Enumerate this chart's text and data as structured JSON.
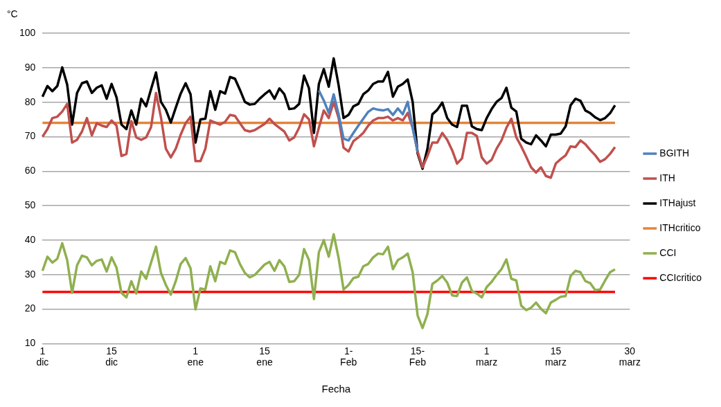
{
  "chart_data": {
    "type": "line",
    "xlabel": "Fecha",
    "ylabel": "°C",
    "ylim": [
      10,
      100
    ],
    "yticks": [
      10,
      20,
      30,
      40,
      50,
      60,
      70,
      80,
      90,
      100
    ],
    "categories": [
      "1 dic",
      null,
      null,
      null,
      null,
      null,
      null,
      null,
      null,
      null,
      null,
      null,
      null,
      null,
      "15 dic",
      null,
      null,
      null,
      null,
      null,
      null,
      null,
      null,
      null,
      null,
      null,
      null,
      null,
      null,
      null,
      null,
      "1 ene",
      null,
      null,
      null,
      null,
      null,
      null,
      null,
      null,
      null,
      null,
      null,
      null,
      null,
      "15 ene",
      null,
      null,
      null,
      null,
      null,
      null,
      null,
      null,
      null,
      null,
      null,
      null,
      null,
      null,
      null,
      null,
      "1- Feb",
      null,
      null,
      null,
      null,
      null,
      null,
      null,
      null,
      null,
      null,
      null,
      null,
      null,
      "15- Feb",
      null,
      null,
      null,
      null,
      null,
      null,
      null,
      null,
      null,
      null,
      null,
      null,
      null,
      "1 marz",
      null,
      null,
      null,
      null,
      null,
      null,
      null,
      null,
      null,
      null,
      null,
      null,
      null,
      "15 marz",
      null,
      null,
      null,
      null,
      null,
      null,
      null,
      null,
      null,
      null,
      null,
      null,
      null,
      null,
      "30 marz"
    ],
    "grid": "y",
    "legend": "right",
    "marker": "none",
    "line_style": "solid",
    "series": [
      {
        "name": "BGITH",
        "color": "#4f81bd",
        "values": [
          null,
          null,
          null,
          null,
          null,
          null,
          null,
          null,
          null,
          null,
          null,
          null,
          null,
          null,
          null,
          null,
          null,
          null,
          null,
          null,
          null,
          null,
          null,
          null,
          null,
          null,
          null,
          null,
          null,
          null,
          null,
          null,
          null,
          null,
          null,
          null,
          null,
          null,
          null,
          null,
          null,
          null,
          null,
          null,
          null,
          null,
          null,
          null,
          null,
          null,
          null,
          null,
          null,
          null,
          null,
          null,
          83.4,
          80.5,
          76.9,
          82.3,
          76.5,
          69.4,
          68.9,
          71.1,
          73.2,
          75.2,
          77.2,
          78.2,
          77.8,
          77.6,
          78,
          76.3,
          78.2,
          76.5,
          80.1,
          72.6,
          65.7,
          null,
          null,
          null,
          null,
          null,
          null,
          null,
          null,
          null,
          null,
          null,
          null,
          null,
          null,
          null,
          null,
          null,
          null,
          null,
          null,
          null,
          null,
          null,
          null,
          null,
          null,
          null,
          null,
          null,
          null,
          null,
          null,
          null,
          null,
          null,
          null,
          null,
          null,
          null,
          null,
          null,
          null,
          null
        ]
      },
      {
        "name": "ITH",
        "color": "#c0504d",
        "values": [
          70,
          72.2,
          75.4,
          75.8,
          77.3,
          79.5,
          68.3,
          69.1,
          71.5,
          75.4,
          70.4,
          73.9,
          73.2,
          72.8,
          74.7,
          73.2,
          64.4,
          65,
          74.5,
          69.8,
          69.1,
          69.8,
          72.8,
          82.7,
          75.6,
          66.5,
          64,
          66.5,
          70.6,
          73.9,
          75.8,
          62.9,
          62.9,
          66.5,
          74.7,
          74.1,
          73.5,
          74.3,
          76.3,
          76,
          73.9,
          71.9,
          71.5,
          71.9,
          72.8,
          73.7,
          75.2,
          73.7,
          72.6,
          71.5,
          68.9,
          69.8,
          72.6,
          76.5,
          75,
          67.2,
          72.6,
          77.6,
          75.4,
          80.1,
          75.4,
          66.8,
          65.7,
          68.7,
          69.8,
          71.1,
          73.2,
          74.7,
          75.4,
          75.4,
          75.8,
          74.7,
          75.4,
          74.7,
          76.9,
          72.6,
          65.7,
          61.1,
          64.4,
          68.3,
          68.3,
          71.1,
          69.1,
          66.1,
          62.2,
          63.7,
          71.1,
          71.1,
          70.2,
          64,
          62.2,
          63.3,
          66.5,
          68.9,
          72.6,
          75.2,
          69.8,
          67.2,
          64.2,
          61.1,
          59.6,
          61.1,
          58.6,
          58.1,
          62.2,
          63.5,
          64.6,
          67.2,
          67,
          68.9,
          67.8,
          66.1,
          64.6,
          62.7,
          63.5,
          65,
          67,
          null,
          null,
          null
        ]
      },
      {
        "name": "ITHajust",
        "color": "#000000",
        "values": [
          81.6,
          84.7,
          83.2,
          84.7,
          90.1,
          85.1,
          73.5,
          82.7,
          85.5,
          86,
          82.7,
          84.2,
          84.9,
          81,
          85.3,
          81.4,
          73.5,
          72.2,
          77.6,
          73.5,
          81,
          78.8,
          83.8,
          88.6,
          80.1,
          77.8,
          74.1,
          78.4,
          82.5,
          85.5,
          82.3,
          68.3,
          75,
          75.2,
          83.2,
          77.8,
          83.2,
          82.5,
          87.3,
          86.8,
          83.6,
          80.1,
          79.3,
          79.5,
          81,
          82.3,
          83.4,
          81,
          84,
          82.3,
          78,
          78.2,
          79.5,
          87.7,
          84,
          71.1,
          85.3,
          89.6,
          84.5,
          92.7,
          84.9,
          75.4,
          76.3,
          78.8,
          79.5,
          82.3,
          83.4,
          85.3,
          86,
          86,
          88.8,
          81.6,
          84.5,
          85.3,
          86.6,
          80.1,
          65.2,
          60.7,
          66.5,
          76.5,
          77.8,
          79.9,
          75.4,
          73.5,
          72.8,
          79,
          79,
          73,
          72.2,
          71.9,
          75.4,
          78,
          80.1,
          81.2,
          84.2,
          78.4,
          77.3,
          69.4,
          68.3,
          67.8,
          70.4,
          68.9,
          67.2,
          70.6,
          70.6,
          70.9,
          73,
          79.1,
          81,
          80.4,
          77.6,
          76.8,
          75.6,
          74.8,
          75.4,
          76.8,
          79.1,
          null,
          null,
          null
        ]
      },
      {
        "name": "ITHcritico",
        "color": "#e3843a",
        "values": [
          74,
          74,
          74,
          74,
          74,
          74,
          74,
          74,
          74,
          74,
          74,
          74,
          74,
          74,
          74,
          74,
          74,
          74,
          74,
          74,
          74,
          74,
          74,
          74,
          74,
          74,
          74,
          74,
          74,
          74,
          74,
          74,
          74,
          74,
          74,
          74,
          74,
          74,
          74,
          74,
          74,
          74,
          74,
          74,
          74,
          74,
          74,
          74,
          74,
          74,
          74,
          74,
          74,
          74,
          74,
          74,
          74,
          74,
          74,
          74,
          74,
          74,
          74,
          74,
          74,
          74,
          74,
          74,
          74,
          74,
          74,
          74,
          74,
          74,
          74,
          74,
          74,
          74,
          74,
          74,
          74,
          74,
          74,
          74,
          74,
          74,
          74,
          74,
          74,
          74,
          74,
          74,
          74,
          74,
          74,
          74,
          74,
          74,
          74,
          74,
          74,
          74,
          74,
          74,
          74,
          74,
          74,
          74,
          74,
          74,
          74,
          74,
          74,
          74,
          74,
          74,
          74,
          null,
          null,
          null
        ]
      },
      {
        "name": "CCI",
        "color": "#8fb04f",
        "values": [
          31.1,
          35.2,
          33.5,
          34.6,
          39.1,
          34.2,
          24.7,
          32.7,
          35.5,
          35,
          32.7,
          34,
          34.4,
          30.9,
          35,
          32,
          24.7,
          23.4,
          28.1,
          24.5,
          30.9,
          28.8,
          33.5,
          38.1,
          30.5,
          27,
          24.2,
          28.1,
          33.1,
          34.8,
          31.8,
          19.9,
          26,
          25.7,
          32.4,
          28.1,
          33.7,
          33.1,
          37,
          36.5,
          33.1,
          30.5,
          29.2,
          29.9,
          31.4,
          32.9,
          33.7,
          31.1,
          34.2,
          32.4,
          27.9,
          28.1,
          29.9,
          37.4,
          34.2,
          22.9,
          36.5,
          40,
          35.2,
          41.7,
          34.8,
          25.7,
          27,
          29,
          29.4,
          32.4,
          33.1,
          35,
          36.1,
          35.9,
          38.1,
          31.6,
          34.2,
          35,
          36.1,
          30.7,
          18.2,
          14.5,
          18.6,
          27.3,
          28.3,
          29.6,
          27.7,
          24,
          23.8,
          27.7,
          29.2,
          25.3,
          24.5,
          23.4,
          26.4,
          27.9,
          29.9,
          31.6,
          34.4,
          28.8,
          28.3,
          21,
          19.7,
          20.4,
          21.9,
          20.1,
          18.8,
          21.9,
          22.7,
          23.6,
          23.8,
          29.6,
          31.1,
          30.7,
          28.1,
          27.5,
          25.5,
          25.7,
          28.3,
          30.7,
          31.5,
          null,
          null,
          null
        ]
      },
      {
        "name": "CCIcritico",
        "color": "#ff0000",
        "values": [
          25,
          25,
          25,
          25,
          25,
          25,
          25,
          25,
          25,
          25,
          25,
          25,
          25,
          25,
          25,
          25,
          25,
          25,
          25,
          25,
          25,
          25,
          25,
          25,
          25,
          25,
          25,
          25,
          25,
          25,
          25,
          25,
          25,
          25,
          25,
          25,
          25,
          25,
          25,
          25,
          25,
          25,
          25,
          25,
          25,
          25,
          25,
          25,
          25,
          25,
          25,
          25,
          25,
          25,
          25,
          25,
          25,
          25,
          25,
          25,
          25,
          25,
          25,
          25,
          25,
          25,
          25,
          25,
          25,
          25,
          25,
          25,
          25,
          25,
          25,
          25,
          25,
          25,
          25,
          25,
          25,
          25,
          25,
          25,
          25,
          25,
          25,
          25,
          25,
          25,
          25,
          25,
          25,
          25,
          25,
          25,
          25,
          25,
          25,
          25,
          25,
          25,
          25,
          25,
          25,
          25,
          25,
          25,
          25,
          25,
          25,
          25,
          25,
          25,
          25,
          25,
          25,
          null,
          null,
          null
        ]
      }
    ]
  }
}
